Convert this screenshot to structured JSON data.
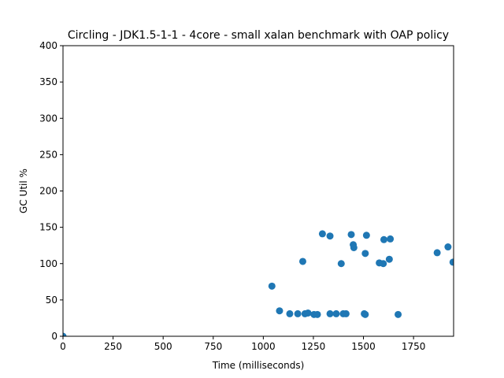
{
  "chart_data": {
    "type": "scatter",
    "title": "Circling - JDK1.5-1-1 - 4core -  small xalan benchmark with OAP policy",
    "xlabel": "Time (milliseconds)",
    "ylabel": "GC Util %",
    "xlim": [
      0,
      1950
    ],
    "ylim": [
      0,
      400
    ],
    "xticks": [
      0,
      250,
      500,
      750,
      1000,
      1250,
      1500,
      1750
    ],
    "yticks": [
      0,
      50,
      100,
      150,
      200,
      250,
      300,
      350,
      400
    ],
    "grid": false,
    "legend": "none",
    "color": "#1f77b4",
    "points": [
      {
        "x": 0,
        "y": 0
      },
      {
        "x": 1043,
        "y": 69
      },
      {
        "x": 1081,
        "y": 35
      },
      {
        "x": 1132,
        "y": 31
      },
      {
        "x": 1172,
        "y": 31
      },
      {
        "x": 1197,
        "y": 103
      },
      {
        "x": 1208,
        "y": 31
      },
      {
        "x": 1223,
        "y": 32
      },
      {
        "x": 1253,
        "y": 30
      },
      {
        "x": 1270,
        "y": 30
      },
      {
        "x": 1295,
        "y": 141
      },
      {
        "x": 1333,
        "y": 31
      },
      {
        "x": 1333,
        "y": 138
      },
      {
        "x": 1364,
        "y": 31
      },
      {
        "x": 1389,
        "y": 100
      },
      {
        "x": 1399,
        "y": 31
      },
      {
        "x": 1413,
        "y": 31
      },
      {
        "x": 1439,
        "y": 140
      },
      {
        "x": 1449,
        "y": 126
      },
      {
        "x": 1452,
        "y": 122
      },
      {
        "x": 1504,
        "y": 31
      },
      {
        "x": 1509,
        "y": 30
      },
      {
        "x": 1509,
        "y": 114
      },
      {
        "x": 1515,
        "y": 139
      },
      {
        "x": 1579,
        "y": 101
      },
      {
        "x": 1599,
        "y": 100
      },
      {
        "x": 1602,
        "y": 133
      },
      {
        "x": 1629,
        "y": 106
      },
      {
        "x": 1634,
        "y": 134
      },
      {
        "x": 1673,
        "y": 30
      },
      {
        "x": 1868,
        "y": 115
      },
      {
        "x": 1922,
        "y": 123
      },
      {
        "x": 1947,
        "y": 102
      }
    ]
  }
}
